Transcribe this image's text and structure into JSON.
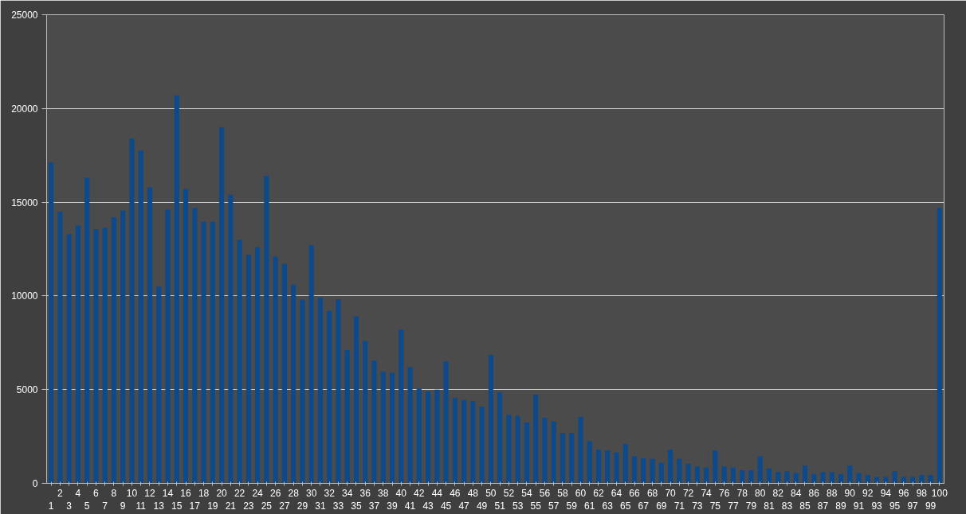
{
  "chart_data": {
    "type": "bar",
    "categories": [
      "1",
      "2",
      "3",
      "4",
      "5",
      "6",
      "7",
      "8",
      "9",
      "10",
      "11",
      "12",
      "13",
      "14",
      "15",
      "16",
      "17",
      "18",
      "19",
      "20",
      "21",
      "22",
      "23",
      "24",
      "25",
      "26",
      "27",
      "28",
      "29",
      "30",
      "31",
      "32",
      "33",
      "34",
      "35",
      "36",
      "37",
      "38",
      "39",
      "40",
      "41",
      "42",
      "43",
      "44",
      "45",
      "46",
      "47",
      "48",
      "49",
      "50",
      "51",
      "52",
      "53",
      "54",
      "55",
      "56",
      "57",
      "58",
      "59",
      "60",
      "61",
      "62",
      "63",
      "64",
      "65",
      "66",
      "67",
      "68",
      "69",
      "70",
      "71",
      "72",
      "73",
      "74",
      "75",
      "76",
      "77",
      "78",
      "79",
      "80",
      "81",
      "82",
      "83",
      "84",
      "85",
      "86",
      "87",
      "88",
      "89",
      "90",
      "91",
      "92",
      "93",
      "94",
      "95",
      "96",
      "97",
      "98",
      "99",
      "100"
    ],
    "values": [
      17100,
      14500,
      13300,
      13750,
      16300,
      13550,
      13650,
      14200,
      14550,
      18400,
      17750,
      15800,
      10500,
      14600,
      20700,
      15700,
      14700,
      13950,
      13950,
      19000,
      15400,
      13000,
      12200,
      12600,
      16400,
      12100,
      11700,
      10600,
      9800,
      12700,
      9900,
      9200,
      9800,
      7100,
      8900,
      7600,
      6550,
      5950,
      5900,
      8200,
      6200,
      5050,
      4900,
      5000,
      6500,
      4550,
      4450,
      4400,
      4100,
      6850,
      4850,
      3650,
      3600,
      3250,
      4750,
      3500,
      3300,
      2700,
      2700,
      3550,
      2250,
      1800,
      1750,
      1650,
      2100,
      1450,
      1350,
      1300,
      1100,
      1800,
      1300,
      1050,
      900,
      850,
      1750,
      900,
      850,
      700,
      700,
      1450,
      800,
      600,
      650,
      550,
      950,
      500,
      600,
      600,
      500,
      950,
      550,
      450,
      350,
      350,
      650,
      350,
      350,
      450,
      450,
      14700
    ],
    "color": "#0d4a8c",
    "ylim": [
      0,
      25000
    ],
    "yticks": [
      0,
      5000,
      10000,
      15000,
      20000,
      25000
    ],
    "grid": "y"
  }
}
